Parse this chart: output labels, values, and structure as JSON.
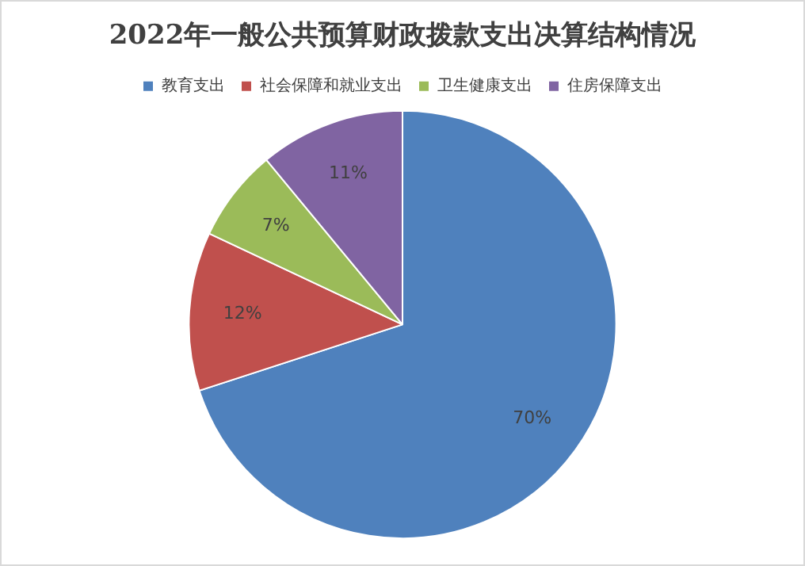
{
  "chart_data": {
    "type": "pie",
    "title": "2022年一般公共预算财政拨款支出决算结构情况",
    "categories": [
      "教育支出",
      "社会保障和就业支出",
      "卫生健康支出",
      "住房保障支出"
    ],
    "values": [
      70,
      12,
      7,
      11
    ],
    "colors": [
      "#4f81bd",
      "#c0504d",
      "#9bbb59",
      "#8064a2"
    ],
    "value_labels": [
      "70%",
      "12%",
      "7%",
      "11%"
    ],
    "legend": "top"
  }
}
